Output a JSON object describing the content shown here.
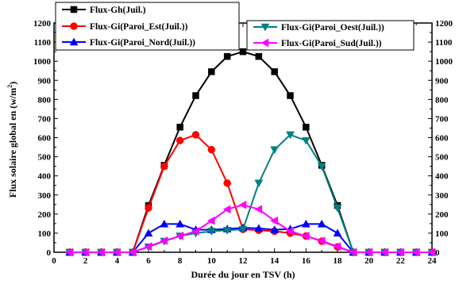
{
  "chart_data": {
    "type": "line",
    "xlabel": "Durée du jour en TSV (h)",
    "ylabel_main": "Flux solaire global en (w/m",
    "ylabel_sup": "2",
    "ylabel_close": ")",
    "xlim": [
      0,
      24
    ],
    "ylim": [
      0,
      1200
    ],
    "x_ticks": [
      0,
      2,
      4,
      6,
      8,
      10,
      12,
      14,
      16,
      18,
      20,
      22,
      24
    ],
    "y_ticks": [
      0,
      100,
      200,
      300,
      400,
      500,
      600,
      700,
      800,
      900,
      1000,
      1100,
      1200
    ],
    "grid": false,
    "legend_position": "top",
    "series": [
      {
        "name": "Flux-Gh(Juil.)",
        "color": "#000000",
        "marker": "square",
        "x": [
          1,
          2,
          3,
          4,
          5,
          6,
          7,
          8,
          9,
          10,
          11,
          12,
          13,
          14,
          15,
          16,
          17,
          18,
          19,
          20,
          21,
          22,
          23,
          24
        ],
        "y": [
          0,
          0,
          0,
          0,
          0,
          245,
          455,
          655,
          820,
          945,
          1025,
          1050,
          1025,
          945,
          820,
          655,
          455,
          245,
          0,
          0,
          0,
          0,
          0,
          0
        ]
      },
      {
        "name": "Flux-Gi(Paroi_Est(Juil.))",
        "color": "#ff0000",
        "marker": "circle",
        "x": [
          1,
          2,
          3,
          4,
          5,
          6,
          7,
          8,
          9,
          10,
          11,
          12,
          13,
          14,
          15,
          16,
          17,
          18,
          19,
          20,
          21,
          22,
          23,
          24
        ],
        "y": [
          0,
          0,
          0,
          0,
          0,
          232,
          450,
          585,
          615,
          537,
          362,
          120,
          115,
          110,
          100,
          85,
          58,
          28,
          0,
          0,
          0,
          0,
          0,
          0
        ]
      },
      {
        "name": "Flux-Gi(Paroi_Nord(Juil.))",
        "color": "#0000ff",
        "marker": "triangle-up",
        "x": [
          1,
          2,
          3,
          4,
          5,
          6,
          7,
          8,
          9,
          10,
          11,
          12,
          13,
          14,
          15,
          16,
          17,
          18,
          19,
          20,
          21,
          22,
          23,
          24
        ],
        "y": [
          0,
          0,
          0,
          0,
          0,
          100,
          148,
          148,
          118,
          118,
          122,
          128,
          125,
          118,
          122,
          148,
          148,
          100,
          0,
          0,
          0,
          0,
          0,
          0
        ]
      },
      {
        "name": "Flux-Gi(Paroi_Oest(Juil.))",
        "color": "#008080",
        "marker": "triangle-down",
        "x": [
          1,
          2,
          3,
          4,
          5,
          6,
          7,
          8,
          9,
          10,
          11,
          12,
          13,
          14,
          15,
          16,
          17,
          18,
          19,
          20,
          21,
          22,
          23,
          24
        ],
        "y": [
          0,
          0,
          0,
          0,
          0,
          28,
          58,
          85,
          100,
          110,
          115,
          120,
          362,
          537,
          615,
          585,
          450,
          232,
          0,
          0,
          0,
          0,
          0,
          0
        ]
      },
      {
        "name": "Flux-Gi(Paroi_Sud(Juil.))",
        "color": "#ff00ff",
        "marker": "triangle-left",
        "x": [
          1,
          2,
          3,
          4,
          5,
          6,
          7,
          8,
          9,
          10,
          11,
          12,
          13,
          14,
          15,
          16,
          17,
          18,
          19,
          20,
          21,
          22,
          23,
          24
        ],
        "y": [
          0,
          0,
          0,
          0,
          0,
          30,
          60,
          85,
          110,
          165,
          225,
          248,
          225,
          165,
          110,
          85,
          60,
          30,
          0,
          0,
          0,
          0,
          0,
          0
        ]
      }
    ]
  }
}
